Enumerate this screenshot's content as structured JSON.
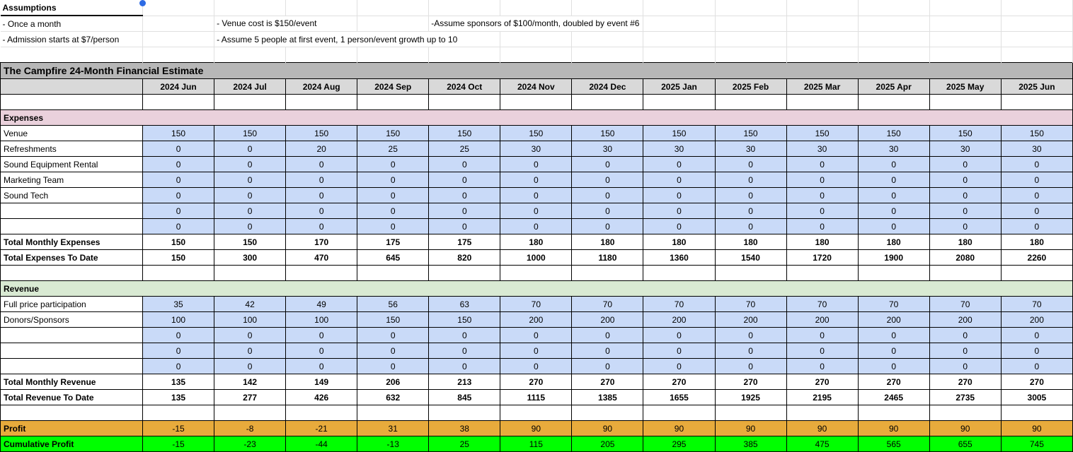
{
  "colors": {
    "title_bg": "#b7b7b7",
    "month_header_bg": "#d9d9d9",
    "expenses_header_bg": "#ead1dc",
    "revenue_header_bg": "#d9ead3",
    "data_cell_bg": "#c9daf8",
    "profit_row_bg": "#e8ab3c",
    "cumulative_row_bg": "#00ff00",
    "presence_dot": "#2d6be4"
  },
  "assumptions": {
    "header": "Assumptions",
    "once_a_month": "- Once a month",
    "venue_cost": "- Venue cost is $150/event",
    "sponsors": "-Assume sponsors of $100/month, doubled by event #6",
    "admission": "- Admission starts at $7/person",
    "people_growth": "- Assume 5 people at first event, 1 person/event growth up to 10"
  },
  "sheet": {
    "title": "The Campfire 24-Month Financial Estimate",
    "months": [
      "2024 Jun",
      "2024 Jul",
      "2024 Aug",
      "2024 Sep",
      "2024 Oct",
      "2024 Nov",
      "2024 Dec",
      "2025 Jan",
      "2025 Feb",
      "2025 Mar",
      "2025 Apr",
      "2025 May",
      "2025 Jun"
    ],
    "rows": [
      {
        "kind": "spacer",
        "label": ""
      },
      {
        "kind": "section",
        "label": "Expenses",
        "style": "expenses"
      },
      {
        "kind": "data",
        "label": "Venue",
        "values": [
          150,
          150,
          150,
          150,
          150,
          150,
          150,
          150,
          150,
          150,
          150,
          150,
          150
        ]
      },
      {
        "kind": "data",
        "label": "Refreshments",
        "values": [
          0,
          0,
          20,
          25,
          25,
          30,
          30,
          30,
          30,
          30,
          30,
          30,
          30
        ]
      },
      {
        "kind": "data",
        "label": "Sound Equipment Rental",
        "values": [
          0,
          0,
          0,
          0,
          0,
          0,
          0,
          0,
          0,
          0,
          0,
          0,
          0
        ]
      },
      {
        "kind": "data",
        "label": "Marketing Team",
        "values": [
          0,
          0,
          0,
          0,
          0,
          0,
          0,
          0,
          0,
          0,
          0,
          0,
          0
        ]
      },
      {
        "kind": "data",
        "label": "Sound Tech",
        "values": [
          0,
          0,
          0,
          0,
          0,
          0,
          0,
          0,
          0,
          0,
          0,
          0,
          0
        ]
      },
      {
        "kind": "data",
        "label": "",
        "values": [
          0,
          0,
          0,
          0,
          0,
          0,
          0,
          0,
          0,
          0,
          0,
          0,
          0
        ]
      },
      {
        "kind": "data",
        "label": "",
        "values": [
          0,
          0,
          0,
          0,
          0,
          0,
          0,
          0,
          0,
          0,
          0,
          0,
          0
        ]
      },
      {
        "kind": "total",
        "label": "Total Monthly Expenses",
        "values": [
          150,
          150,
          170,
          175,
          175,
          180,
          180,
          180,
          180,
          180,
          180,
          180,
          180
        ]
      },
      {
        "kind": "total",
        "label": "Total Expenses To Date",
        "values": [
          150,
          300,
          470,
          645,
          820,
          1000,
          1180,
          1360,
          1540,
          1720,
          1900,
          2080,
          2260
        ]
      },
      {
        "kind": "spacer",
        "label": ""
      },
      {
        "kind": "section",
        "label": "Revenue",
        "style": "revenue"
      },
      {
        "kind": "data",
        "label": "Full price participation",
        "values": [
          35,
          42,
          49,
          56,
          63,
          70,
          70,
          70,
          70,
          70,
          70,
          70,
          70
        ]
      },
      {
        "kind": "data",
        "label": "Donors/Sponsors",
        "values": [
          100,
          100,
          100,
          150,
          150,
          200,
          200,
          200,
          200,
          200,
          200,
          200,
          200
        ]
      },
      {
        "kind": "data",
        "label": "",
        "values": [
          0,
          0,
          0,
          0,
          0,
          0,
          0,
          0,
          0,
          0,
          0,
          0,
          0
        ]
      },
      {
        "kind": "data",
        "label": "",
        "values": [
          0,
          0,
          0,
          0,
          0,
          0,
          0,
          0,
          0,
          0,
          0,
          0,
          0
        ]
      },
      {
        "kind": "data",
        "label": "",
        "values": [
          0,
          0,
          0,
          0,
          0,
          0,
          0,
          0,
          0,
          0,
          0,
          0,
          0
        ]
      },
      {
        "kind": "total",
        "label": "Total Monthly Revenue",
        "values": [
          135,
          142,
          149,
          206,
          213,
          270,
          270,
          270,
          270,
          270,
          270,
          270,
          270
        ]
      },
      {
        "kind": "total",
        "label": "Total Revenue To Date",
        "values": [
          135,
          277,
          426,
          632,
          845,
          1115,
          1385,
          1655,
          1925,
          2195,
          2465,
          2735,
          3005
        ]
      },
      {
        "kind": "spacer",
        "label": ""
      },
      {
        "kind": "highlight",
        "label": "Profit",
        "style": "profit",
        "values": [
          -15,
          -8,
          -21,
          31,
          38,
          90,
          90,
          90,
          90,
          90,
          90,
          90,
          90
        ]
      },
      {
        "kind": "highlight",
        "label": "Cumulative Profit",
        "style": "cumulative",
        "values": [
          -15,
          -23,
          -44,
          -13,
          25,
          115,
          205,
          295,
          385,
          475,
          565,
          655,
          745
        ]
      }
    ]
  }
}
